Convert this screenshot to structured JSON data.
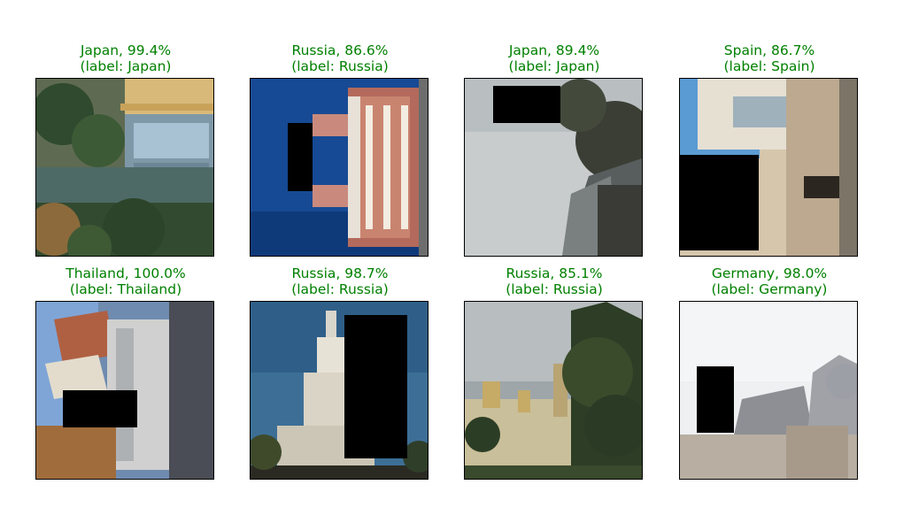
{
  "panels": [
    {
      "title": "Japan, 99.4%",
      "label": "(label: Japan)",
      "scene": "japan-pavilion-lake"
    },
    {
      "title": "Russia, 86.6%",
      "label": "(label: Russia)",
      "scene": "russia-red-brick-building"
    },
    {
      "title": "Japan, 89.4%",
      "label": "(label: Japan)",
      "scene": "japan-pagoda-sky"
    },
    {
      "title": "Spain, 86.7%",
      "label": "(label: Spain)",
      "scene": "spain-stone-buildings"
    },
    {
      "title": "Thailand, 100.0%",
      "label": "(label: Thailand)",
      "scene": "thailand-temple-street"
    },
    {
      "title": "Russia, 98.7%",
      "label": "(label: Russia)",
      "scene": "russia-white-church"
    },
    {
      "title": "Russia, 85.1%",
      "label": "(label: Russia)",
      "scene": "russia-church-trees"
    },
    {
      "title": "Germany, 98.0%",
      "label": "(label: Germany)",
      "scene": "germany-cathedral"
    }
  ],
  "colors": {
    "caption": "#008000",
    "border": "#000000"
  }
}
